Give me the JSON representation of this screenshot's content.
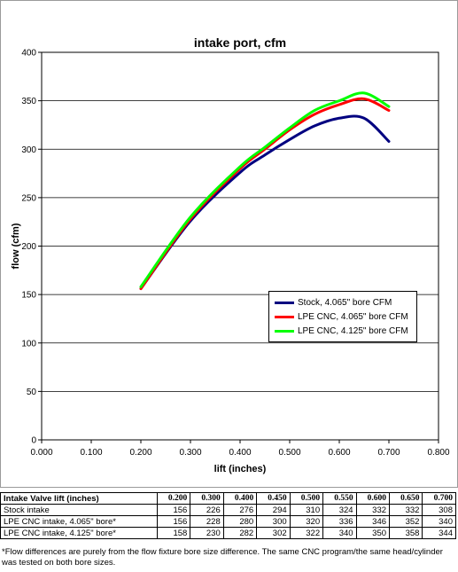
{
  "chart_data": {
    "type": "line",
    "title": "intake port, cfm",
    "xlabel": "lift (inches)",
    "ylabel": "flow (cfm)",
    "xlim": [
      0.0,
      0.8
    ],
    "ylim": [
      0,
      400
    ],
    "xticks": [
      "0.000",
      "0.100",
      "0.200",
      "0.300",
      "0.400",
      "0.500",
      "0.600",
      "0.700",
      "0.800"
    ],
    "yticks": [
      "0",
      "50",
      "100",
      "150",
      "200",
      "250",
      "300",
      "350",
      "400"
    ],
    "grid": "horizontal",
    "legend_position": "right",
    "x": [
      0.2,
      0.3,
      0.4,
      0.45,
      0.5,
      0.55,
      0.6,
      0.65,
      0.7
    ],
    "series": [
      {
        "name": "Stock, 4.065\" bore  CFM",
        "color": "#000080",
        "values": [
          156,
          226,
          276,
          294,
          310,
          324,
          332,
          332,
          308
        ]
      },
      {
        "name": "LPE CNC, 4.065\" bore  CFM",
        "color": "#ff0000",
        "values": [
          156,
          228,
          280,
          300,
          320,
          336,
          346,
          352,
          340
        ]
      },
      {
        "name": "LPE CNC, 4.125\" bore CFM",
        "color": "#00ff00",
        "values": [
          158,
          230,
          282,
          302,
          322,
          340,
          350,
          358,
          344
        ]
      }
    ]
  },
  "table": {
    "header_label": "Intake Valve lift (inches)",
    "columns": [
      "0.200",
      "0.300",
      "0.400",
      "0.450",
      "0.500",
      "0.550",
      "0.600",
      "0.650",
      "0.700"
    ],
    "rows": [
      {
        "label": "Stock intake",
        "values": [
          "156",
          "226",
          "276",
          "294",
          "310",
          "324",
          "332",
          "332",
          "308"
        ]
      },
      {
        "label": "LPE CNC intake, 4.065\" bore*",
        "values": [
          "156",
          "228",
          "280",
          "300",
          "320",
          "336",
          "346",
          "352",
          "340"
        ]
      },
      {
        "label": "LPE CNC intake, 4.125\" bore*",
        "values": [
          "158",
          "230",
          "282",
          "302",
          "322",
          "340",
          "350",
          "358",
          "344"
        ]
      }
    ]
  },
  "footnote": "*Flow differences are purely from the flow fixture bore size difference. The same CNC program/the same head/cylinder was tested on both bore sizes."
}
